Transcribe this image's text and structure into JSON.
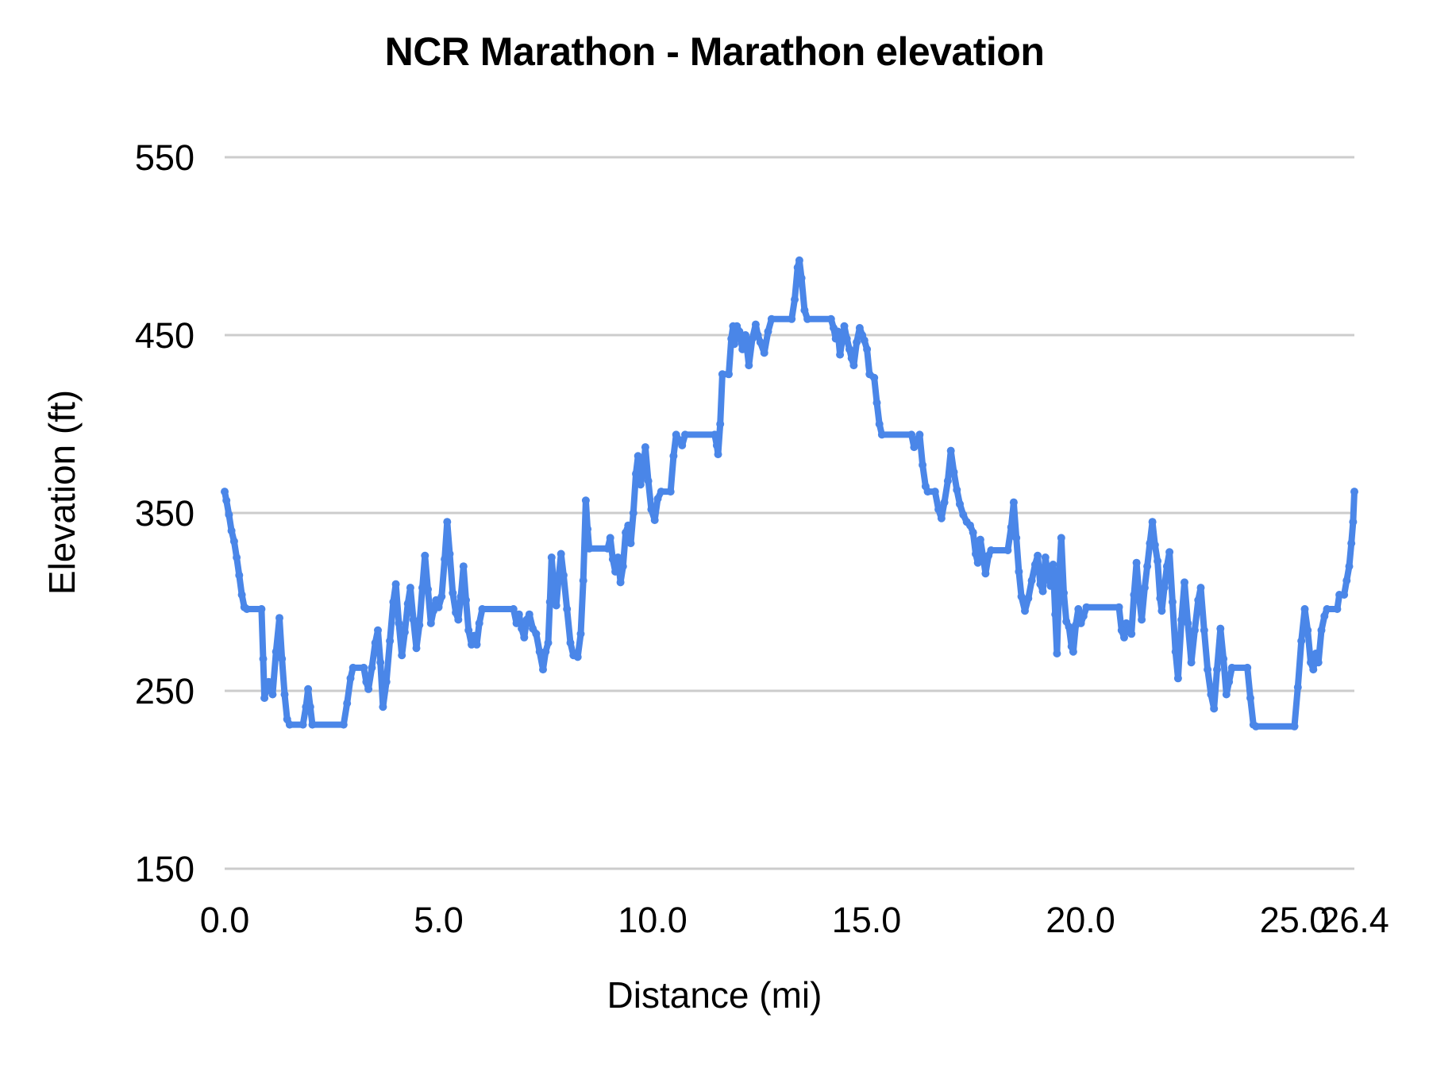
{
  "chart": {
    "title": "NCR Marathon - Marathon elevation",
    "xlabel": "Distance (mi)",
    "ylabel": "Elevation (ft)"
  },
  "chart_data": {
    "type": "line",
    "title": "NCR Marathon - Marathon elevation",
    "xlabel": "Distance (mi)",
    "ylabel": "Elevation (ft)",
    "xlim": [
      0,
      26.4
    ],
    "ylim": [
      150,
      550
    ],
    "grid": "horizontal-only",
    "legend": "none",
    "colors": {
      "line": "#4a86e8",
      "gridline": "#cccccc",
      "text": "#000000",
      "background": "#ffffff"
    },
    "y_ticks": [
      {
        "value": 550,
        "label": "550"
      },
      {
        "value": 450,
        "label": "450"
      },
      {
        "value": 350,
        "label": "350"
      },
      {
        "value": 250,
        "label": "250"
      },
      {
        "value": 150,
        "label": "150"
      }
    ],
    "x_ticks": [
      {
        "value": 0,
        "label": "0.0"
      },
      {
        "value": 5,
        "label": "5.0"
      },
      {
        "value": 10,
        "label": "10.0"
      },
      {
        "value": 15,
        "label": "15.0"
      },
      {
        "value": 20,
        "label": "20.0"
      },
      {
        "value": 25,
        "label": "25.0"
      },
      {
        "value": 26.4,
        "label": "26.4"
      }
    ],
    "series": [
      {
        "x": [
          0,
          0.04,
          0.1,
          0.16,
          0.22,
          0.28,
          0.34,
          0.4,
          0.46,
          0.52,
          0.86,
          0.9,
          0.93,
          0.98,
          1.03,
          1.08,
          1.12,
          1.2,
          1.28,
          1.34,
          1.4,
          1.46,
          1.52,
          1.83,
          1.9,
          1.95,
          2.0,
          2.05,
          2.78,
          2.86,
          2.94,
          3.0,
          3.25,
          3.31,
          3.36,
          3.44,
          3.52,
          3.58,
          3.64,
          3.7,
          3.78,
          3.86,
          3.94,
          4.0,
          4.07,
          4.14,
          4.21,
          4.28,
          4.34,
          4.41,
          4.48,
          4.55,
          4.62,
          4.68,
          4.75,
          4.82,
          4.88,
          4.94,
          5.0,
          5.07,
          5.14,
          5.2,
          5.26,
          5.33,
          5.4,
          5.46,
          5.52,
          5.58,
          5.64,
          5.7,
          5.77,
          5.83,
          5.89,
          5.95,
          6.02,
          6.75,
          6.82,
          6.88,
          6.94,
          7.0,
          7.06,
          7.12,
          7.2,
          7.28,
          7.36,
          7.44,
          7.5,
          7.56,
          7.6,
          7.64,
          7.7,
          7.75,
          7.8,
          7.86,
          7.92,
          8.0,
          8.08,
          8.15,
          8.25,
          8.32,
          8.38,
          8.44,
          8.48,
          8.52,
          8.95,
          9.01,
          9.07,
          9.13,
          9.19,
          9.25,
          9.31,
          9.37,
          9.43,
          9.49,
          9.55,
          9.61,
          9.66,
          9.72,
          9.78,
          9.83,
          9.9,
          9.97,
          10.05,
          10.12,
          10.2,
          10.42,
          10.49,
          10.55,
          10.62,
          10.69,
          10.76,
          11.45,
          11.5,
          11.53,
          11.58,
          11.63,
          11.78,
          11.84,
          11.88,
          11.91,
          11.97,
          12.03,
          12.1,
          12.17,
          12.25,
          12.33,
          12.41,
          12.46,
          12.52,
          12.61,
          12.7,
          12.78,
          13.25,
          13.32,
          13.39,
          13.43,
          13.48,
          13.55,
          13.62,
          14.17,
          14.23,
          14.28,
          14.33,
          14.38,
          14.44,
          14.48,
          14.54,
          14.6,
          14.65,
          14.7,
          14.77,
          14.84,
          14.9,
          14.95,
          15.01,
          15.07,
          15.18,
          15.24,
          15.3,
          15.36,
          16.05,
          16.11,
          16.17,
          16.24,
          16.31,
          16.38,
          16.43,
          16.6,
          16.68,
          16.75,
          16.82,
          16.9,
          16.97,
          17.04,
          17.11,
          17.18,
          17.26,
          17.34,
          17.42,
          17.49,
          17.55,
          17.6,
          17.66,
          17.72,
          17.78,
          17.85,
          17.91,
          18.3,
          18.38,
          18.44,
          18.5,
          18.56,
          18.62,
          18.7,
          18.78,
          18.86,
          18.94,
          19.0,
          19.06,
          19.12,
          19.18,
          19.24,
          19.3,
          19.36,
          19.41,
          19.45,
          19.51,
          19.55,
          19.61,
          19.67,
          19.73,
          19.79,
          19.83,
          19.89,
          19.95,
          20.01,
          20.07,
          20.14,
          20.9,
          20.96,
          21.02,
          21.07,
          21.13,
          21.19,
          21.25,
          21.31,
          21.37,
          21.43,
          21.5,
          21.56,
          21.62,
          21.68,
          21.74,
          21.8,
          21.86,
          21.9,
          21.96,
          22.02,
          22.08,
          22.15,
          22.22,
          22.28,
          22.36,
          22.43,
          22.51,
          22.59,
          22.67,
          22.75,
          22.81,
          22.89,
          22.97,
          23.05,
          23.12,
          23.19,
          23.27,
          23.34,
          23.41,
          23.47,
          23.54,
          23.9,
          23.97,
          24.04,
          24.1,
          25.0,
          25.08,
          25.16,
          25.24,
          25.31,
          25.38,
          25.44,
          25.5,
          25.56,
          25.63,
          25.7,
          25.76,
          26.0,
          26.05,
          26.16,
          26.22,
          26.28,
          26.33,
          26.37,
          26.4
        ],
        "y": [
          362,
          357,
          349,
          340,
          334,
          325,
          315,
          304,
          297,
          296,
          296,
          268,
          246,
          252,
          255,
          250,
          248,
          272,
          291,
          268,
          248,
          234,
          231,
          231,
          241,
          251,
          241,
          231,
          231,
          243,
          257,
          263,
          263,
          255,
          251,
          263,
          277,
          284,
          266,
          241,
          255,
          278,
          300,
          310,
          288,
          270,
          283,
          299,
          308,
          290,
          274,
          287,
          308,
          326,
          307,
          288,
          295,
          301,
          297,
          303,
          324,
          345,
          327,
          305,
          294,
          290,
          303,
          320,
          301,
          284,
          276,
          281,
          276,
          288,
          296,
          296,
          288,
          293,
          285,
          280,
          290,
          293,
          285,
          282,
          272,
          262,
          272,
          277,
          300,
          325,
          307,
          298,
          312,
          327,
          315,
          296,
          277,
          270,
          269,
          282,
          312,
          357,
          341,
          330,
          330,
          336,
          324,
          317,
          325,
          311,
          320,
          339,
          343,
          333,
          350,
          372,
          382,
          366,
          374,
          387,
          368,
          352,
          346,
          358,
          362,
          362,
          382,
          394,
          391,
          388,
          394,
          394,
          388,
          383,
          400,
          428,
          428,
          448,
          455,
          445,
          455,
          452,
          442,
          450,
          433,
          448,
          456,
          450,
          446,
          440,
          452,
          459,
          459,
          470,
          488,
          492,
          482,
          464,
          459,
          459,
          454,
          448,
          452,
          439,
          448,
          455,
          448,
          442,
          437,
          433,
          446,
          454,
          450,
          447,
          442,
          428,
          426,
          412,
          400,
          394,
          394,
          387,
          391,
          394,
          377,
          365,
          362,
          362,
          352,
          347,
          356,
          368,
          385,
          373,
          363,
          355,
          349,
          345,
          343,
          339,
          327,
          322,
          335,
          326,
          316,
          326,
          329,
          329,
          342,
          356,
          336,
          317,
          303,
          295,
          302,
          312,
          321,
          326,
          310,
          306,
          325,
          315,
          309,
          321,
          293,
          271,
          318,
          336,
          305,
          289,
          286,
          275,
          272,
          287,
          296,
          288,
          292,
          297,
          297,
          284,
          280,
          288,
          284,
          282,
          304,
          322,
          303,
          290,
          308,
          320,
          333,
          345,
          332,
          323,
          302,
          295,
          308,
          320,
          328,
          300,
          272,
          257,
          290,
          311,
          288,
          266,
          284,
          301,
          308,
          284,
          262,
          248,
          240,
          262,
          285,
          268,
          248,
          255,
          263,
          263,
          246,
          231,
          230,
          230,
          252,
          278,
          296,
          284,
          266,
          262,
          271,
          266,
          284,
          292,
          296,
          296,
          304,
          304,
          312,
          320,
          333,
          345,
          362
        ]
      }
    ]
  }
}
